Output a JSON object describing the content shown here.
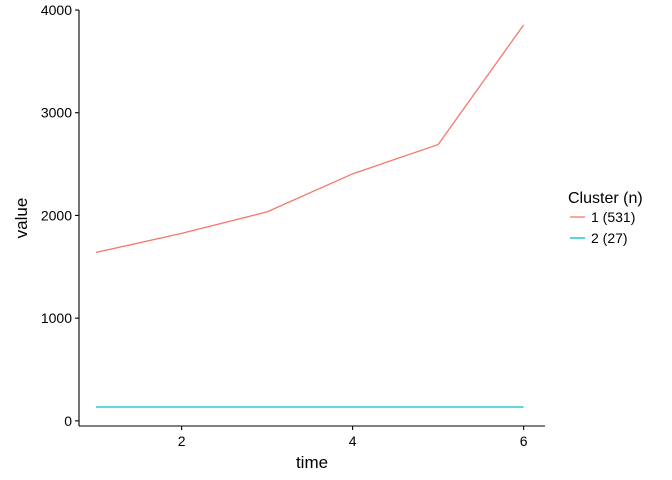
{
  "chart_data": {
    "type": "line",
    "xlabel": "time",
    "ylabel": "value",
    "x": [
      1,
      2,
      3,
      4,
      5,
      6
    ],
    "xlim": [
      0.8,
      6.25
    ],
    "ylim": [
      -50,
      4000
    ],
    "xticks": [
      2,
      4,
      6
    ],
    "yticks": [
      0,
      1000,
      2000,
      3000,
      4000
    ],
    "grid": false,
    "legend": {
      "title": "Cluster (n)",
      "position": "right"
    },
    "series": [
      {
        "name": "1 (531)",
        "color": "#F8766D",
        "values": [
          1640,
          1825,
          2035,
          2405,
          2690,
          3855
        ]
      },
      {
        "name": "2 (27)",
        "color": "#00BFC4",
        "values": [
          135,
          135,
          135,
          135,
          135,
          135
        ]
      }
    ]
  }
}
